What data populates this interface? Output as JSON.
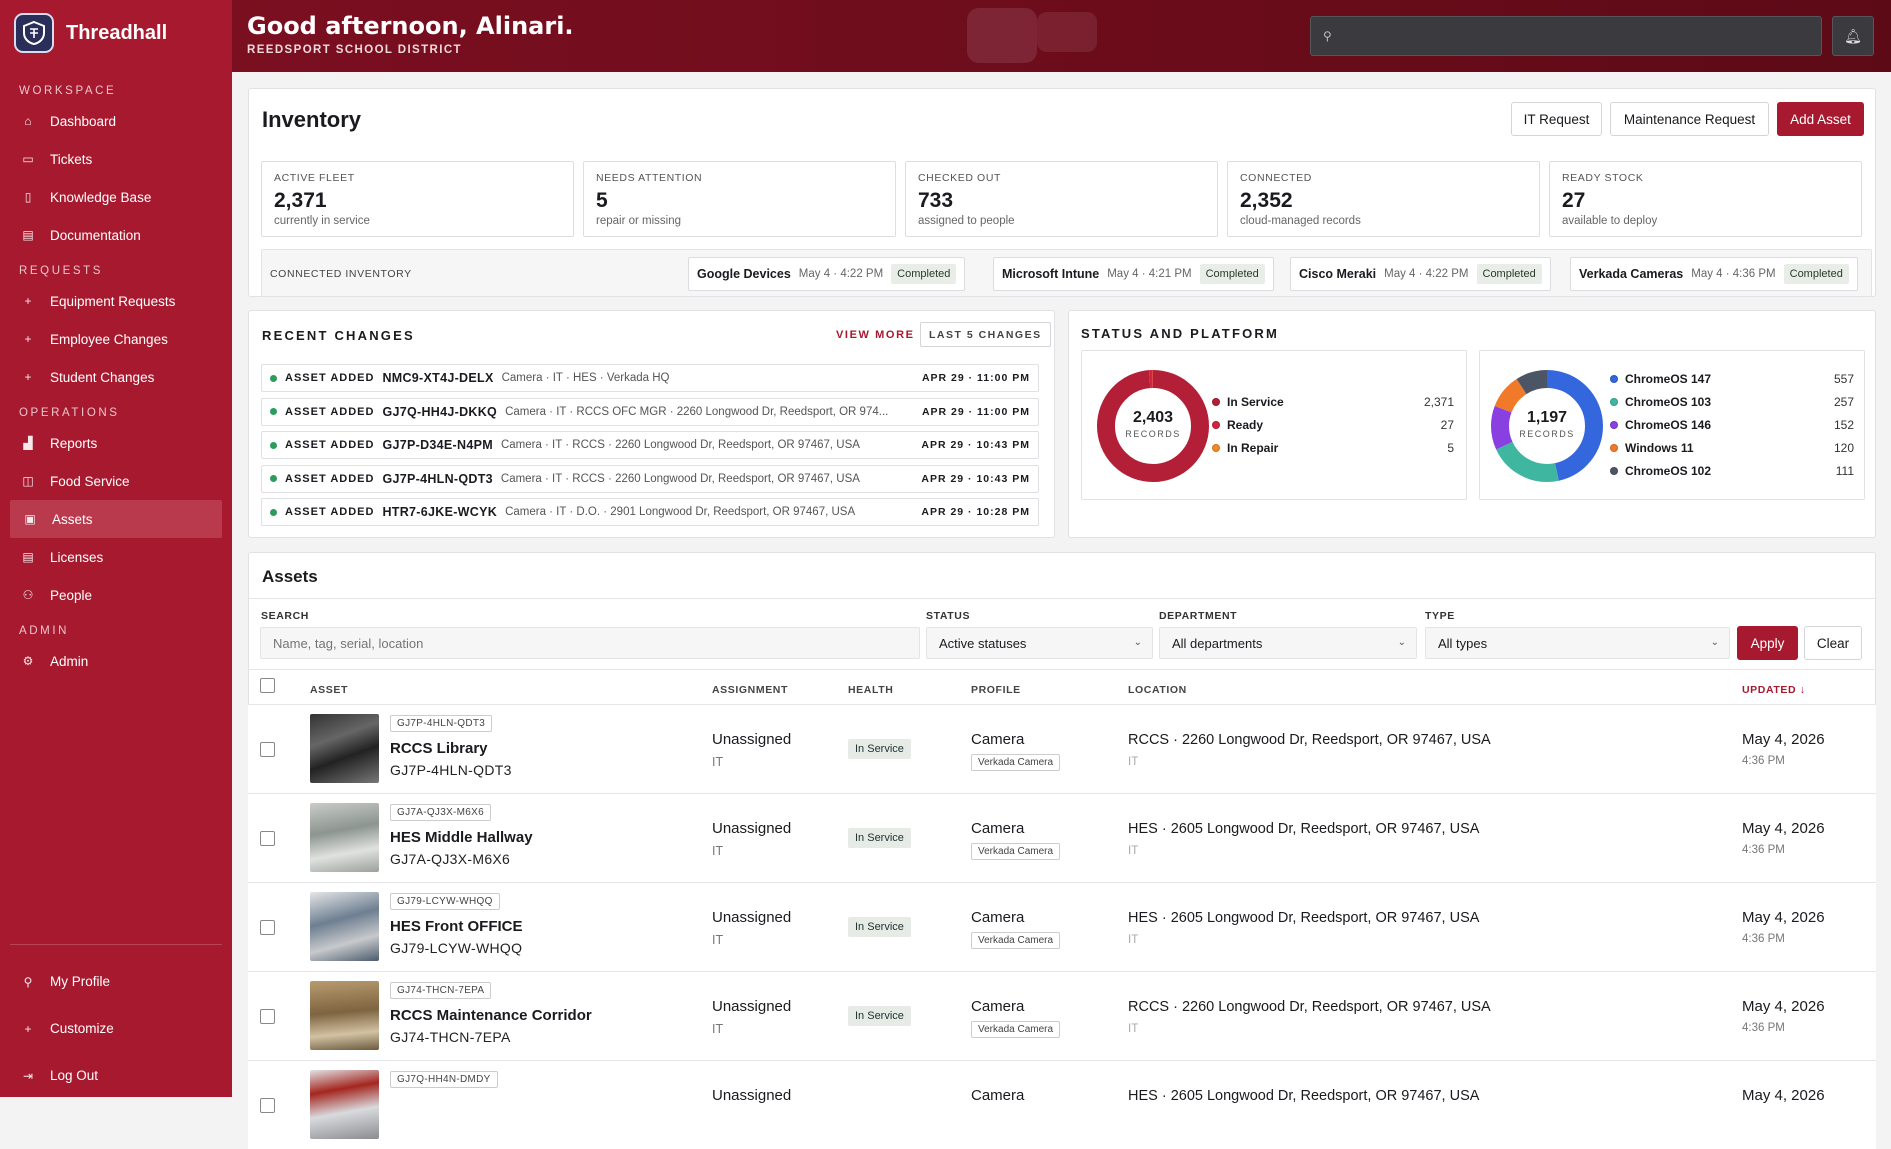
{
  "app": {
    "name": "Threadhall"
  },
  "sidebar": {
    "sections": [
      {
        "label": "WORKSPACE",
        "items": [
          {
            "label": "Dashboard",
            "icon": "home-icon",
            "glyph": "⌂"
          },
          {
            "label": "Tickets",
            "icon": "ticket-icon",
            "glyph": "▭"
          },
          {
            "label": "Knowledge Base",
            "icon": "book-icon",
            "glyph": "▯"
          },
          {
            "label": "Documentation",
            "icon": "document-icon",
            "glyph": "▤"
          }
        ]
      },
      {
        "label": "REQUESTS",
        "items": [
          {
            "label": "Equipment Requests",
            "icon": "plus-icon",
            "glyph": "+"
          },
          {
            "label": "Employee Changes",
            "icon": "plus-icon",
            "glyph": "+"
          },
          {
            "label": "Student Changes",
            "icon": "plus-icon",
            "glyph": "+"
          }
        ]
      },
      {
        "label": "OPERATIONS",
        "items": [
          {
            "label": "Reports",
            "icon": "bar-chart-icon",
            "glyph": "▟"
          },
          {
            "label": "Food Service",
            "icon": "food-icon",
            "glyph": "◫"
          },
          {
            "label": "Assets",
            "icon": "assets-icon",
            "glyph": "▣",
            "active": true
          },
          {
            "label": "Licenses",
            "icon": "license-icon",
            "glyph": "▤"
          },
          {
            "label": "People",
            "icon": "people-icon",
            "glyph": "⚇"
          }
        ]
      },
      {
        "label": "ADMIN",
        "items": [
          {
            "label": "Admin",
            "icon": "gear-icon",
            "glyph": "⚙"
          }
        ]
      }
    ],
    "footer": [
      {
        "label": "My Profile",
        "icon": "user-icon",
        "glyph": "⚲"
      },
      {
        "label": "Customize",
        "icon": "plus-icon",
        "glyph": "+"
      },
      {
        "label": "Log Out",
        "icon": "logout-icon",
        "glyph": "⇥"
      }
    ]
  },
  "header": {
    "greeting": "Good afternoon, Alinari.",
    "district": "REEDSPORT SCHOOL DISTRICT",
    "search_placeholder": ""
  },
  "inventory": {
    "title": "Inventory",
    "buttons": {
      "it_request": "IT Request",
      "maintenance_request": "Maintenance Request",
      "add_asset": "Add Asset"
    },
    "stats": [
      {
        "label": "ACTIVE FLEET",
        "value": "2,371",
        "sub": "currently in service"
      },
      {
        "label": "NEEDS ATTENTION",
        "value": "5",
        "sub": "repair or missing"
      },
      {
        "label": "CHECKED OUT",
        "value": "733",
        "sub": "assigned to people"
      },
      {
        "label": "CONNECTED",
        "value": "2,352",
        "sub": "cloud-managed records"
      },
      {
        "label": "READY STOCK",
        "value": "27",
        "sub": "available to deploy"
      }
    ],
    "connected_label": "CONNECTED INVENTORY",
    "connected": [
      {
        "name": "Google Devices",
        "time": "May 4 · 4:22 PM",
        "status": "Completed"
      },
      {
        "name": "Microsoft Intune",
        "time": "May 4 · 4:21 PM",
        "status": "Completed"
      },
      {
        "name": "Cisco Meraki",
        "time": "May 4 · 4:22 PM",
        "status": "Completed"
      },
      {
        "name": "Verkada Cameras",
        "time": "May 4 · 4:36 PM",
        "status": "Completed"
      }
    ]
  },
  "recent_changes": {
    "title": "RECENT CHANGES",
    "view_more": "VIEW MORE",
    "last_label": "LAST 5 CHANGES",
    "items": [
      {
        "kind": "ASSET ADDED",
        "id": "NMC9-XT4J-DELX",
        "desc": "Camera · IT · HES · Verkada HQ",
        "time": "APR 29 · 11:00 PM"
      },
      {
        "kind": "ASSET ADDED",
        "id": "GJ7Q-HH4J-DKKQ",
        "desc": "Camera · IT · RCCS OFC MGR · 2260 Longwood Dr, Reedsport, OR 974...",
        "time": "APR 29 · 11:00 PM"
      },
      {
        "kind": "ASSET ADDED",
        "id": "GJ7P-D34E-N4PM",
        "desc": "Camera · IT · RCCS · 2260 Longwood Dr, Reedsport, OR 97467, USA",
        "time": "APR 29 · 10:43 PM"
      },
      {
        "kind": "ASSET ADDED",
        "id": "GJ7P-4HLN-QDT3",
        "desc": "Camera · IT · RCCS · 2260 Longwood Dr, Reedsport, OR 97467, USA",
        "time": "APR 29 · 10:43 PM"
      },
      {
        "kind": "ASSET ADDED",
        "id": "HTR7-6JKE-WCYK",
        "desc": "Camera · IT · D.O. · 2901 Longwood Dr, Reedsport, OR 97467, USA",
        "time": "APR 29 · 10:28 PM"
      }
    ]
  },
  "status_platform": {
    "title": "STATUS AND PLATFORM",
    "status_total": "2,403",
    "platform_total": "1,197",
    "records_label": "RECORDS",
    "status": [
      {
        "name": "In Service",
        "value": 2371,
        "display": "2,371",
        "color": "#b21f36"
      },
      {
        "name": "Ready",
        "value": 27,
        "display": "27",
        "color": "#d4233c"
      },
      {
        "name": "In Repair",
        "value": 5,
        "display": "5",
        "color": "#f08a24"
      }
    ],
    "platform": [
      {
        "name": "ChromeOS 147",
        "value": 557,
        "display": "557",
        "color": "#3466dd"
      },
      {
        "name": "ChromeOS 103",
        "value": 257,
        "display": "257",
        "color": "#3fb6a0"
      },
      {
        "name": "ChromeOS 146",
        "value": 152,
        "display": "152",
        "color": "#8a3fe0"
      },
      {
        "name": "Windows 11",
        "value": 120,
        "display": "120",
        "color": "#f07a2a"
      },
      {
        "name": "ChromeOS 102",
        "value": 111,
        "display": "111",
        "color": "#4b5566"
      }
    ]
  },
  "assets": {
    "title": "Assets",
    "filters": {
      "search_label": "SEARCH",
      "search_placeholder": "Name, tag, serial, location",
      "status_label": "STATUS",
      "status_value": "Active statuses",
      "department_label": "DEPARTMENT",
      "department_value": "All departments",
      "type_label": "TYPE",
      "type_value": "All types",
      "apply": "Apply",
      "clear": "Clear"
    },
    "columns": {
      "asset": "ASSET",
      "assignment": "ASSIGNMENT",
      "health": "HEALTH",
      "profile": "PROFILE",
      "location": "LOCATION",
      "updated": "UPDATED ↓"
    },
    "rows": [
      {
        "tag": "GJ7P-4HLN-QDT3",
        "name": "RCCS Library",
        "id": "GJ7P-4HLN-QDT3",
        "assignment": "Unassigned",
        "dept": "IT",
        "health": "In Service",
        "profile": "Camera",
        "profile_tag": "Verkada Camera",
        "location": "RCCS · 2260 Longwood Dr, Reedsport, OR 97467, USA",
        "location_sub": "IT",
        "updated": "May 4, 2026",
        "updated_time": "4:36 PM"
      },
      {
        "tag": "GJ7A-QJ3X-M6X6",
        "name": "HES Middle Hallway",
        "id": "GJ7A-QJ3X-M6X6",
        "assignment": "Unassigned",
        "dept": "IT",
        "health": "In Service",
        "profile": "Camera",
        "profile_tag": "Verkada Camera",
        "location": "HES · 2605 Longwood Dr, Reedsport, OR 97467, USA",
        "location_sub": "IT",
        "updated": "May 4, 2026",
        "updated_time": "4:36 PM"
      },
      {
        "tag": "GJ79-LCYW-WHQQ",
        "name": "HES Front OFFICE",
        "id": "GJ79-LCYW-WHQQ",
        "assignment": "Unassigned",
        "dept": "IT",
        "health": "In Service",
        "profile": "Camera",
        "profile_tag": "Verkada Camera",
        "location": "HES · 2605 Longwood Dr, Reedsport, OR 97467, USA",
        "location_sub": "IT",
        "updated": "May 4, 2026",
        "updated_time": "4:36 PM"
      },
      {
        "tag": "GJ74-THCN-7EPA",
        "name": "RCCS Maintenance Corridor",
        "id": "GJ74-THCN-7EPA",
        "assignment": "Unassigned",
        "dept": "IT",
        "health": "In Service",
        "profile": "Camera",
        "profile_tag": "Verkada Camera",
        "location": "RCCS · 2260 Longwood Dr, Reedsport, OR 97467, USA",
        "location_sub": "IT",
        "updated": "May 4, 2026",
        "updated_time": "4:36 PM"
      },
      {
        "tag": "GJ7Q-HH4N-DMDY",
        "name": "",
        "id": "",
        "assignment": "Unassigned",
        "dept": "",
        "health": "",
        "profile": "Camera",
        "profile_tag": "",
        "location": "HES · 2605 Longwood Dr, Reedsport, OR 97467, USA",
        "location_sub": "",
        "updated": "May 4, 2026",
        "updated_time": ""
      }
    ]
  }
}
